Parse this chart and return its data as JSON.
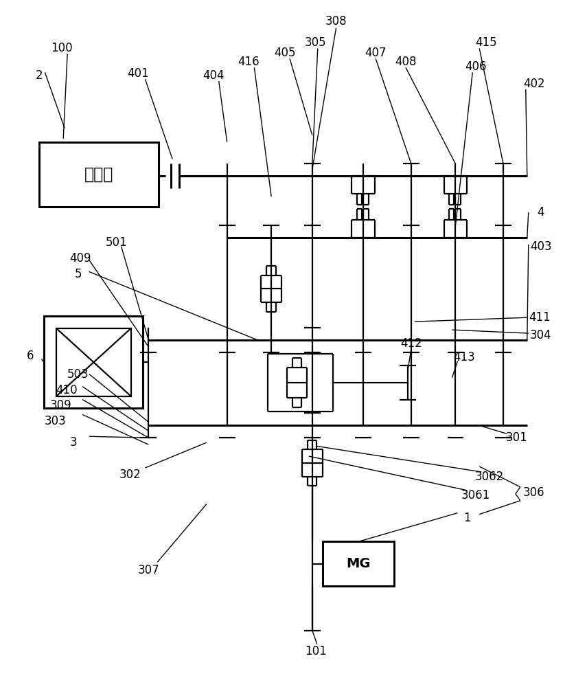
{
  "bg_color": "#ffffff",
  "lc": "#000000",
  "lw": 1.6,
  "lw_thick": 2.2,
  "lw_thin": 1.0,
  "fig_w": 8.55,
  "fig_h": 10.0
}
